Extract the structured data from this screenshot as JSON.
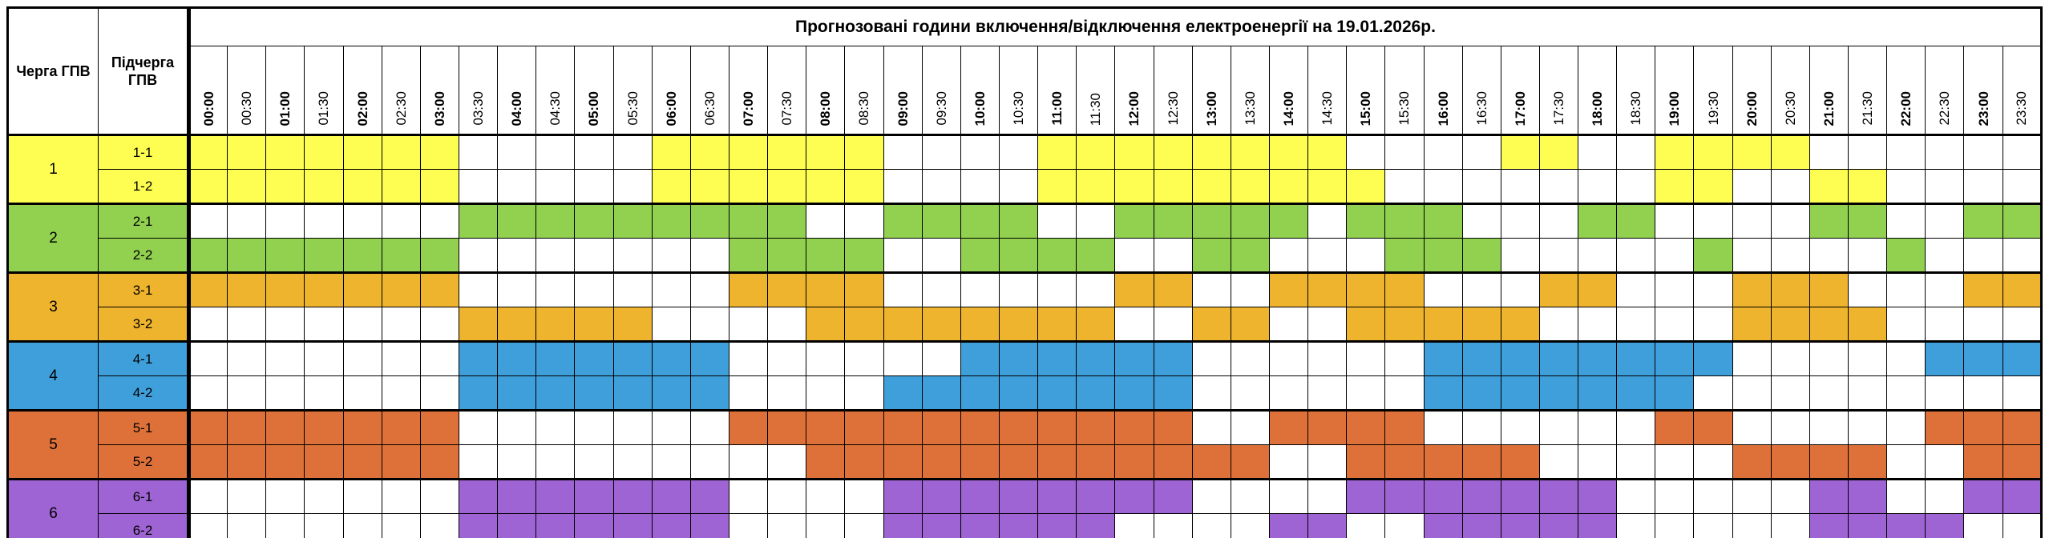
{
  "chart_data": {
    "type": "heatmap",
    "title": "Прогнозовані години включення/відключення електроенергії на 19.01.2026р.",
    "columns_header": {
      "queue": "Черга ГПВ",
      "subqueue": "Підчерга ГПВ"
    },
    "x_labels": [
      "00:00",
      "00:30",
      "01:00",
      "01:30",
      "02:00",
      "02:30",
      "03:00",
      "03:30",
      "04:00",
      "04:30",
      "05:00",
      "05:30",
      "06:00",
      "06:30",
      "07:00",
      "07:30",
      "08:00",
      "08:30",
      "09:00",
      "09:30",
      "10:00",
      "10:30",
      "11:00",
      "11:30",
      "12:00",
      "12:30",
      "13:00",
      "13:30",
      "14:00",
      "14:30",
      "15:00",
      "15:30",
      "16:00",
      "16:30",
      "17:00",
      "17:30",
      "18:00",
      "18:30",
      "19:00",
      "19:30",
      "20:00",
      "20:30",
      "21:00",
      "21:30",
      "22:00",
      "22:30",
      "23:00",
      "23:30"
    ],
    "cell_meaning": "1 = outage interval filled with queue color, 0 = white cell",
    "groups": [
      {
        "queue": "1",
        "color": "#FDFD52",
        "rows": [
          {
            "subqueue": "1-1",
            "slots": "111111100000111111000011111111000011001111000000"
          },
          {
            "subqueue": "1-2",
            "slots": "111111100000111111000011111111100000001100110000"
          }
        ]
      },
      {
        "queue": "2",
        "color": "#92D050",
        "rows": [
          {
            "subqueue": "2-1",
            "slots": "000000011111111100111100111110111000110000110011"
          },
          {
            "subqueue": "2-2",
            "slots": "111111100000001111001111001100011100000100001000"
          }
        ]
      },
      {
        "queue": "3",
        "color": "#EFB42E",
        "rows": [
          {
            "subqueue": "3-1",
            "slots": "111111100000001111000000110011110001100011100011"
          },
          {
            "subqueue": "3-2",
            "slots": "000000011111000011111111001100111110000011110000"
          }
        ]
      },
      {
        "queue": "4",
        "color": "#3F9FDA",
        "rows": [
          {
            "subqueue": "4-1",
            "slots": "000000011111110000001111110000001111111100000111"
          },
          {
            "subqueue": "4-2",
            "slots": "000000011111110000111111110000001111111000000000"
          }
        ]
      },
      {
        "queue": "5",
        "color": "#DE7139",
        "rows": [
          {
            "subqueue": "5-1",
            "slots": "111111100000001111111111110011110000001100000111"
          },
          {
            "subqueue": "5-2",
            "slots": "111111100000000011111111111100111110000011110011"
          }
        ]
      },
      {
        "queue": "6",
        "color": "#9E64D3",
        "rows": [
          {
            "subqueue": "6-1",
            "slots": "000000011111110000111111110000111111100000110011"
          },
          {
            "subqueue": "6-2",
            "slots": "000000011111110000111111000011001111100000111100"
          }
        ]
      }
    ]
  }
}
